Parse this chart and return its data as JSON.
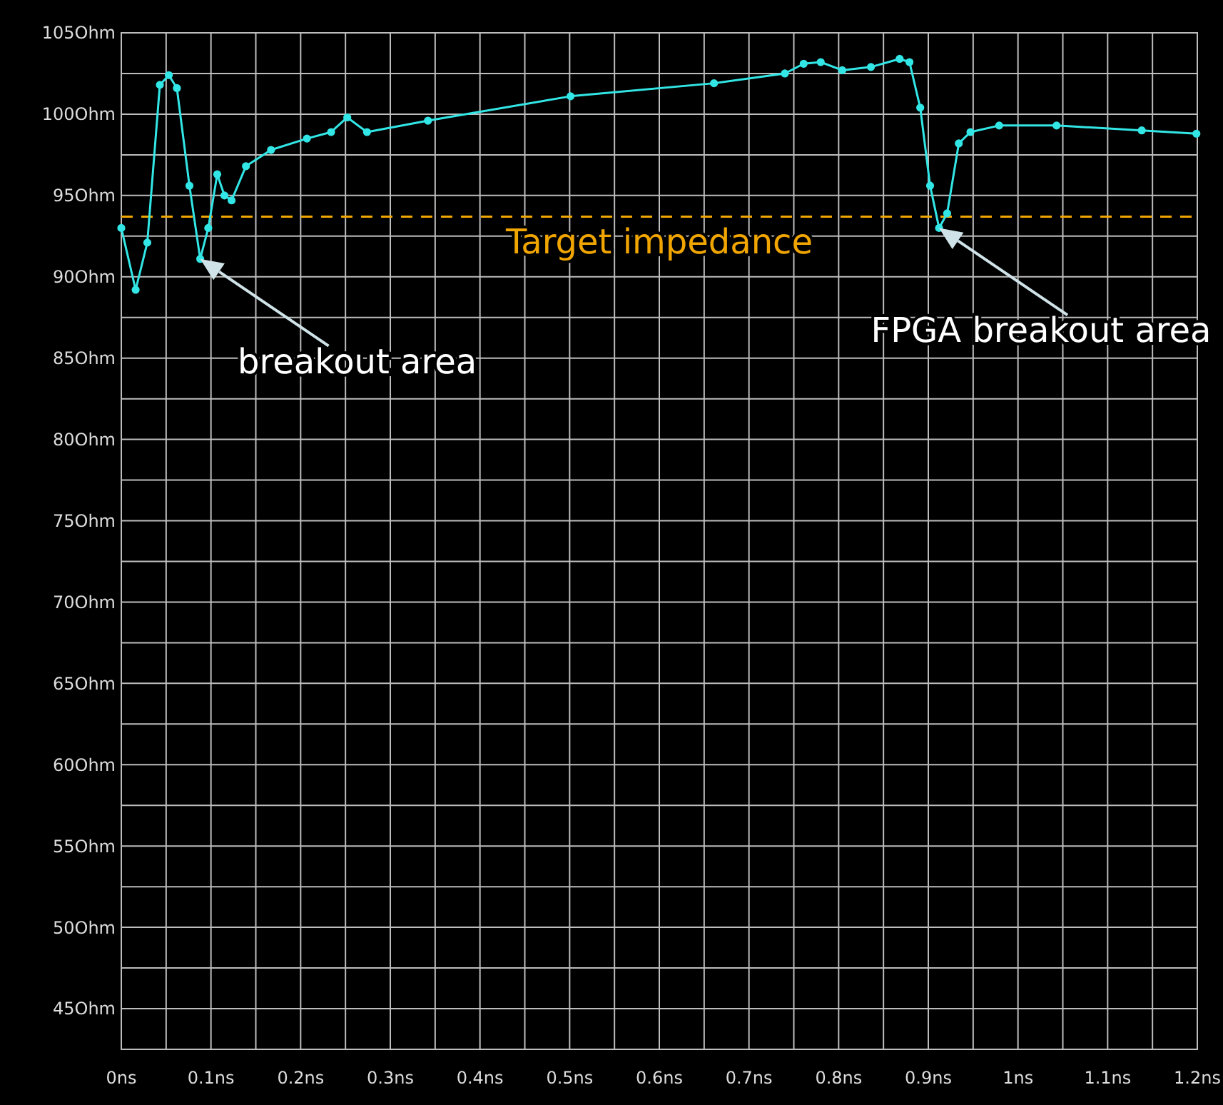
{
  "chart_data": {
    "type": "line",
    "xlim": [
      0,
      1.2
    ],
    "ylim": [
      42.5,
      105
    ],
    "xticks": [
      {
        "value": 0,
        "label": "0ns"
      },
      {
        "value": 0.05,
        "label": null
      },
      {
        "value": 0.1,
        "label": "0.1ns"
      },
      {
        "value": 0.15,
        "label": null
      },
      {
        "value": 0.2,
        "label": "0.2ns"
      },
      {
        "value": 0.25,
        "label": null
      },
      {
        "value": 0.3,
        "label": "0.3ns"
      },
      {
        "value": 0.35,
        "label": null
      },
      {
        "value": 0.4,
        "label": "0.4ns"
      },
      {
        "value": 0.45,
        "label": null
      },
      {
        "value": 0.5,
        "label": "0.5ns"
      },
      {
        "value": 0.55,
        "label": null
      },
      {
        "value": 0.6,
        "label": "0.6ns"
      },
      {
        "value": 0.65,
        "label": null
      },
      {
        "value": 0.7,
        "label": "0.7ns"
      },
      {
        "value": 0.75,
        "label": null
      },
      {
        "value": 0.8,
        "label": "0.8ns"
      },
      {
        "value": 0.85,
        "label": null
      },
      {
        "value": 0.9,
        "label": "0.9ns"
      },
      {
        "value": 0.95,
        "label": null
      },
      {
        "value": 1,
        "label": "1ns"
      },
      {
        "value": 1.05,
        "label": null
      },
      {
        "value": 1.1,
        "label": "1.1ns"
      },
      {
        "value": 1.15,
        "label": null
      },
      {
        "value": 1.2,
        "label": "1.2ns"
      }
    ],
    "yticks": [
      {
        "value": 45,
        "label": "45Ohm"
      },
      {
        "value": 47.5,
        "label": null
      },
      {
        "value": 50,
        "label": "50Ohm"
      },
      {
        "value": 52.5,
        "label": null
      },
      {
        "value": 55,
        "label": "55Ohm"
      },
      {
        "value": 57.5,
        "label": null
      },
      {
        "value": 60,
        "label": "60Ohm"
      },
      {
        "value": 62.5,
        "label": null
      },
      {
        "value": 65,
        "label": "65Ohm"
      },
      {
        "value": 67.5,
        "label": null
      },
      {
        "value": 70,
        "label": "70Ohm"
      },
      {
        "value": 72.5,
        "label": null
      },
      {
        "value": 75,
        "label": "75Ohm"
      },
      {
        "value": 77.5,
        "label": null
      },
      {
        "value": 80,
        "label": "80Ohm"
      },
      {
        "value": 82.5,
        "label": null
      },
      {
        "value": 85,
        "label": "85Ohm"
      },
      {
        "value": 87.5,
        "label": null
      },
      {
        "value": 90,
        "label": "90Ohm"
      },
      {
        "value": 92.5,
        "label": null
      },
      {
        "value": 95,
        "label": "95Ohm"
      },
      {
        "value": 97.5,
        "label": null
      },
      {
        "value": 100,
        "label": "100Ohm"
      },
      {
        "value": 102.5,
        "label": null
      },
      {
        "value": 105,
        "label": "105Ohm"
      }
    ],
    "grid": true,
    "marker": "circle",
    "line_style": "solid",
    "series": [
      {
        "color": "#33e6e6",
        "x": [
          0,
          0.016,
          0.029,
          0.043,
          0.053,
          0.062,
          0.076,
          0.088,
          0.097,
          0.107,
          0.115,
          0.123,
          0.139,
          0.167,
          0.207,
          0.234,
          0.252,
          0.274,
          0.342,
          0.501,
          0.661,
          0.74,
          0.761,
          0.78,
          0.804,
          0.836,
          0.868,
          0.879,
          0.891,
          0.902,
          0.912,
          0.921,
          0.934,
          0.947,
          0.979,
          1.043,
          1.138,
          1.199
        ],
        "values": [
          93.0,
          89.2,
          92.1,
          101.8,
          102.4,
          101.6,
          95.6,
          91.1,
          93.0,
          96.3,
          95.0,
          94.7,
          96.8,
          97.8,
          98.5,
          98.9,
          99.8,
          98.9,
          99.6,
          101.1,
          101.9,
          102.5,
          103.1,
          103.2,
          102.7,
          102.9,
          103.4,
          103.2,
          100.4,
          95.6,
          93.0,
          93.9,
          98.2,
          98.9,
          99.3,
          99.3,
          99.0,
          98.8
        ]
      }
    ],
    "ref_lines": [
      {
        "axis": "y",
        "value": 93.7,
        "label": "Target impedance",
        "color": "#f0a500",
        "line_style": "dashed"
      }
    ],
    "annotations": [
      {
        "text": "breakout area",
        "x": 0.088,
        "y": 91.1
      },
      {
        "text": "FPGA breakout area",
        "x": 0.912,
        "y": 93.0
      }
    ]
  }
}
